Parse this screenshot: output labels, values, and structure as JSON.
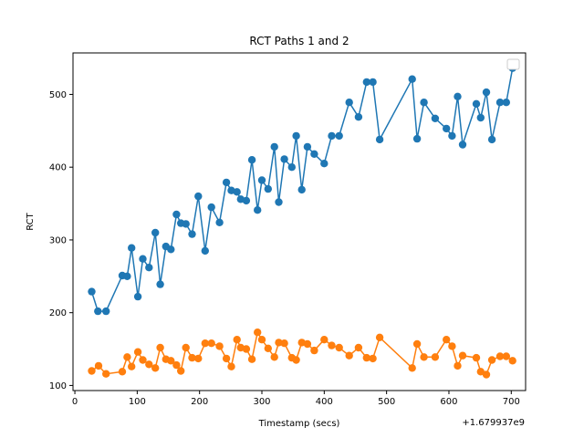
{
  "chart_data": {
    "type": "line",
    "title": "RCT Paths 1 and 2",
    "xlabel": "Timestamp (secs)",
    "ylabel": "RCT",
    "x_offset_label": "+1.679937e9",
    "xlim": [
      -3,
      723
    ],
    "ylim": [
      93,
      557
    ],
    "x_ticks": [
      0,
      100,
      200,
      300,
      400,
      500,
      600,
      700
    ],
    "y_ticks": [
      100,
      200,
      300,
      400,
      500
    ],
    "grid": false,
    "legend": "top-right",
    "series": [
      {
        "color": "#1f77b4",
        "x": [
          27,
          37,
          50,
          76,
          84,
          91,
          101,
          109,
          119,
          129,
          137,
          146,
          154,
          163,
          170,
          178,
          188,
          198,
          209,
          219,
          232,
          243,
          251,
          260,
          266,
          275,
          284,
          293,
          300,
          310,
          320,
          327,
          336,
          348,
          355,
          364,
          373,
          384,
          400,
          412,
          424,
          440,
          455,
          468,
          478,
          489,
          541,
          549,
          560,
          578,
          596,
          605,
          614,
          622,
          644,
          651,
          660,
          669,
          682,
          692,
          702
        ],
        "y": [
          229,
          202,
          202,
          251,
          250,
          289,
          222,
          274,
          262,
          310,
          239,
          291,
          287,
          335,
          323,
          322,
          308,
          360,
          285,
          345,
          324,
          379,
          368,
          366,
          356,
          354,
          410,
          341,
          382,
          370,
          428,
          352,
          411,
          400,
          443,
          369,
          428,
          418,
          405,
          443,
          443,
          489,
          469,
          517,
          517,
          438,
          521,
          439,
          489,
          467,
          453,
          443,
          497,
          431,
          487,
          468,
          503,
          438,
          489,
          489,
          536
        ]
      },
      {
        "color": "#ff7f0e",
        "x": [
          27,
          38,
          50,
          76,
          84,
          91,
          101,
          109,
          119,
          129,
          137,
          146,
          154,
          163,
          170,
          178,
          188,
          198,
          209,
          219,
          232,
          243,
          251,
          260,
          266,
          275,
          284,
          293,
          300,
          310,
          320,
          327,
          336,
          348,
          355,
          364,
          373,
          384,
          400,
          412,
          424,
          440,
          455,
          468,
          478,
          489,
          541,
          549,
          560,
          578,
          596,
          605,
          614,
          622,
          644,
          651,
          660,
          669,
          682,
          692,
          702
        ],
        "y": [
          120,
          127,
          116,
          119,
          139,
          126,
          146,
          135,
          129,
          124,
          152,
          136,
          134,
          128,
          120,
          152,
          138,
          137,
          158,
          158,
          154,
          137,
          126,
          163,
          152,
          150,
          136,
          173,
          163,
          151,
          139,
          159,
          158,
          138,
          135,
          159,
          157,
          148,
          163,
          155,
          152,
          141,
          152,
          138,
          137,
          166,
          124,
          157,
          139,
          139,
          163,
          154,
          127,
          141,
          138,
          119,
          115,
          135,
          140,
          140,
          134
        ]
      }
    ]
  }
}
